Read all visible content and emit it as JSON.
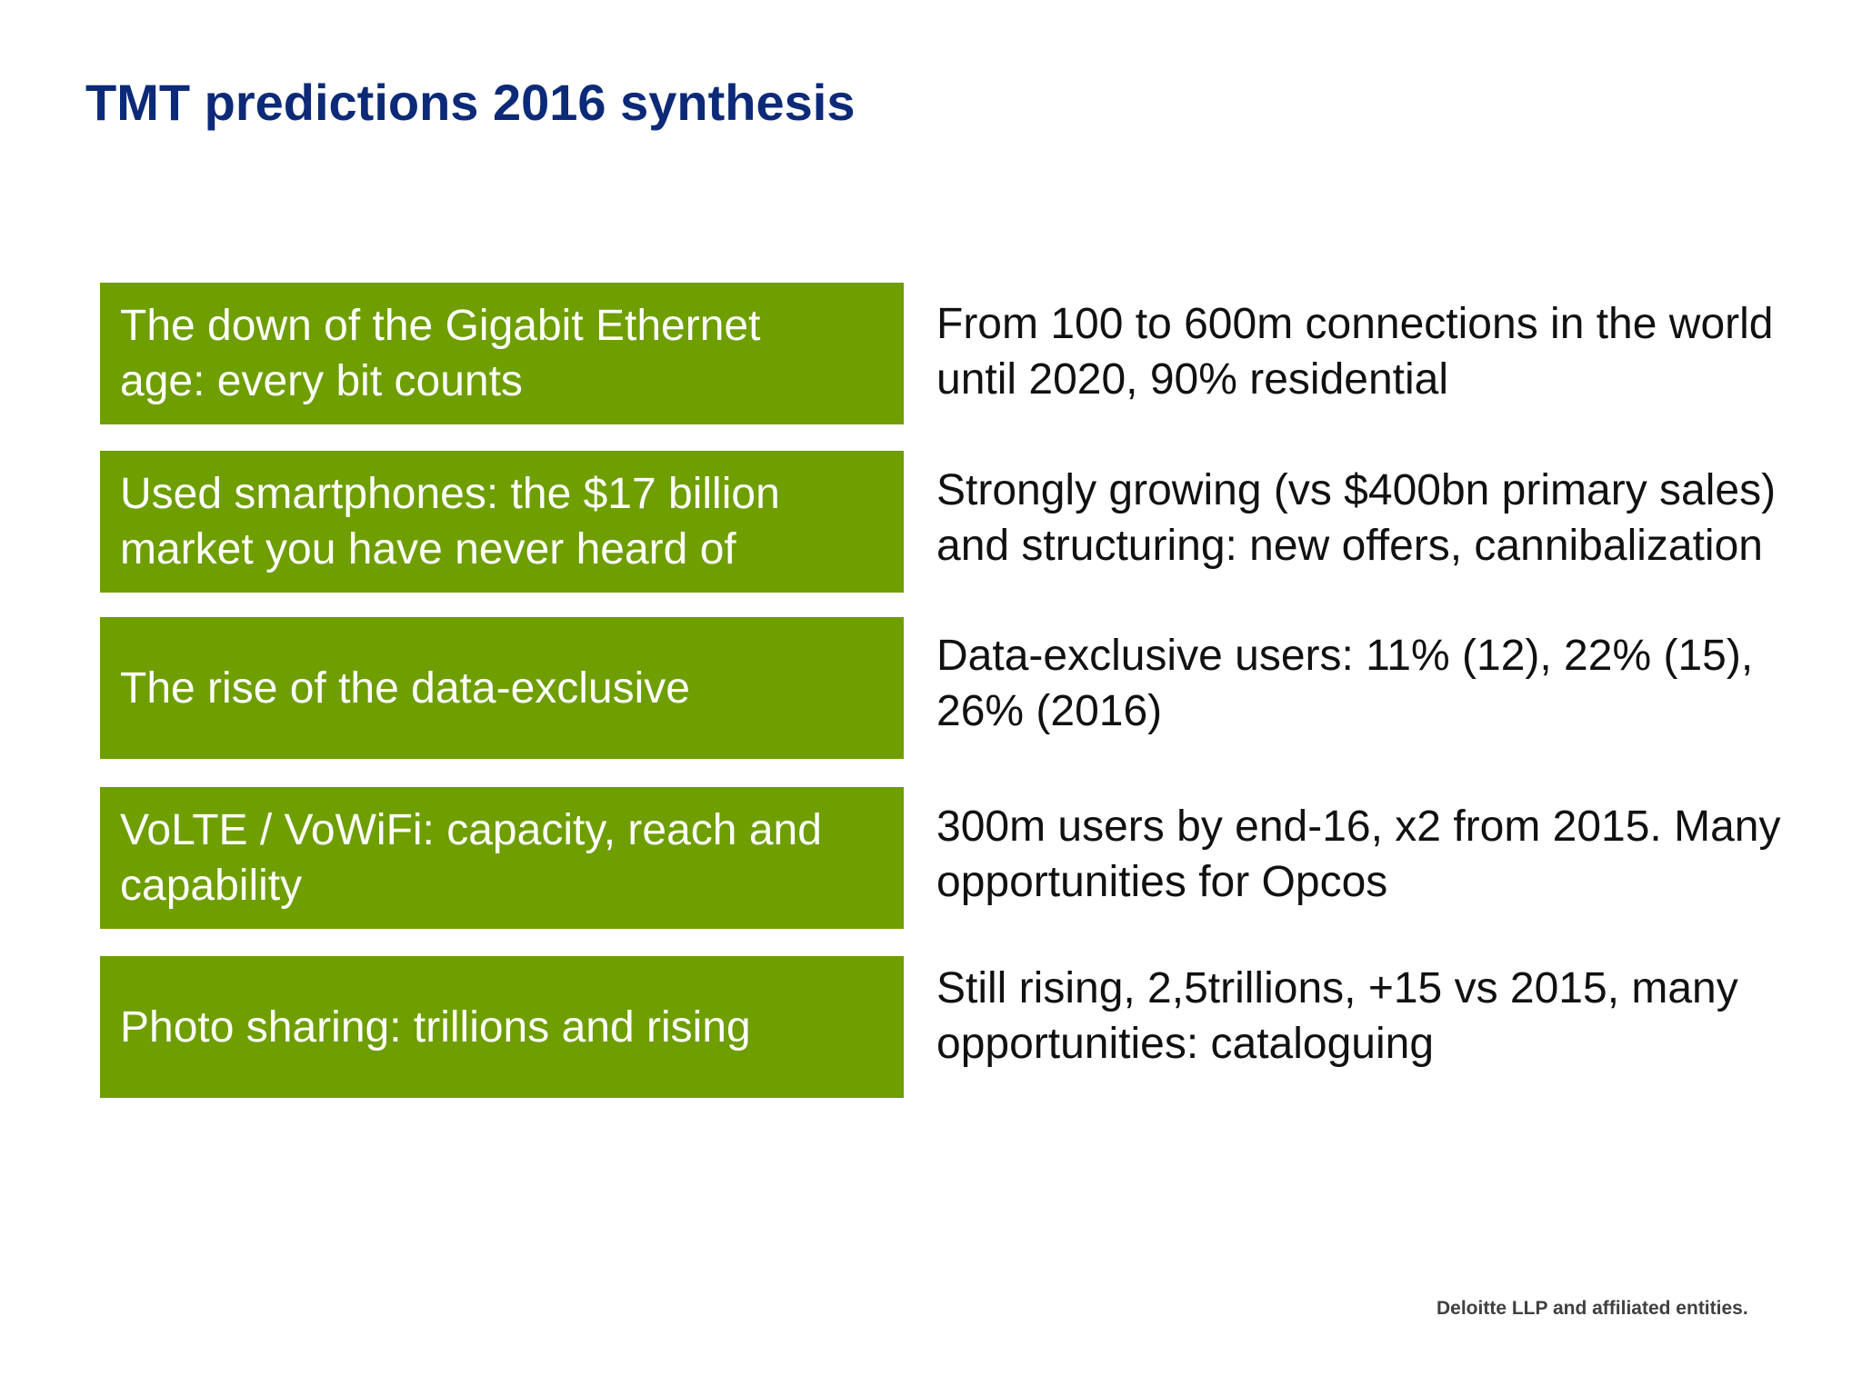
{
  "title": "TMT predictions 2016 synthesis",
  "rows": [
    {
      "label_lines": [
        "The down of the Gigabit Ethernet",
        "age: every bit counts"
      ],
      "desc_lines": [
        "From 100 to 600m connections in the world",
        "until 2020, 90% residential"
      ]
    },
    {
      "label_lines": [
        "Used smartphones: the $17 billion",
        "market you have never heard of"
      ],
      "desc_lines": [
        "Strongly growing (vs $400bn primary sales)",
        "and structuring: new offers, cannibalization"
      ]
    },
    {
      "label_lines": [
        "The rise of the data-exclusive"
      ],
      "desc_lines": [
        "Data-exclusive users: 11% (12), 22% (15),",
        "26% (2016)"
      ]
    },
    {
      "label_lines": [
        "VoLTE / VoWiFi: capacity, reach and",
        "capability"
      ],
      "desc_lines": [
        "300m users by end-16, x2 from 2015. Many",
        "opportunities for Opcos"
      ]
    },
    {
      "label_lines": [
        "Photo sharing: trillions and rising"
      ],
      "desc_lines": [
        "Still rising, 2,5trillions, +15 vs 2015, many",
        "opportunities: cataloguing"
      ]
    }
  ],
  "footer": "Deloitte LLP and affiliated entities.",
  "colors": {
    "title": "#0d2a78",
    "box": "#6e9e00",
    "box_text": "#ffffff",
    "desc_text": "#111111",
    "footer_text": "#404040"
  }
}
